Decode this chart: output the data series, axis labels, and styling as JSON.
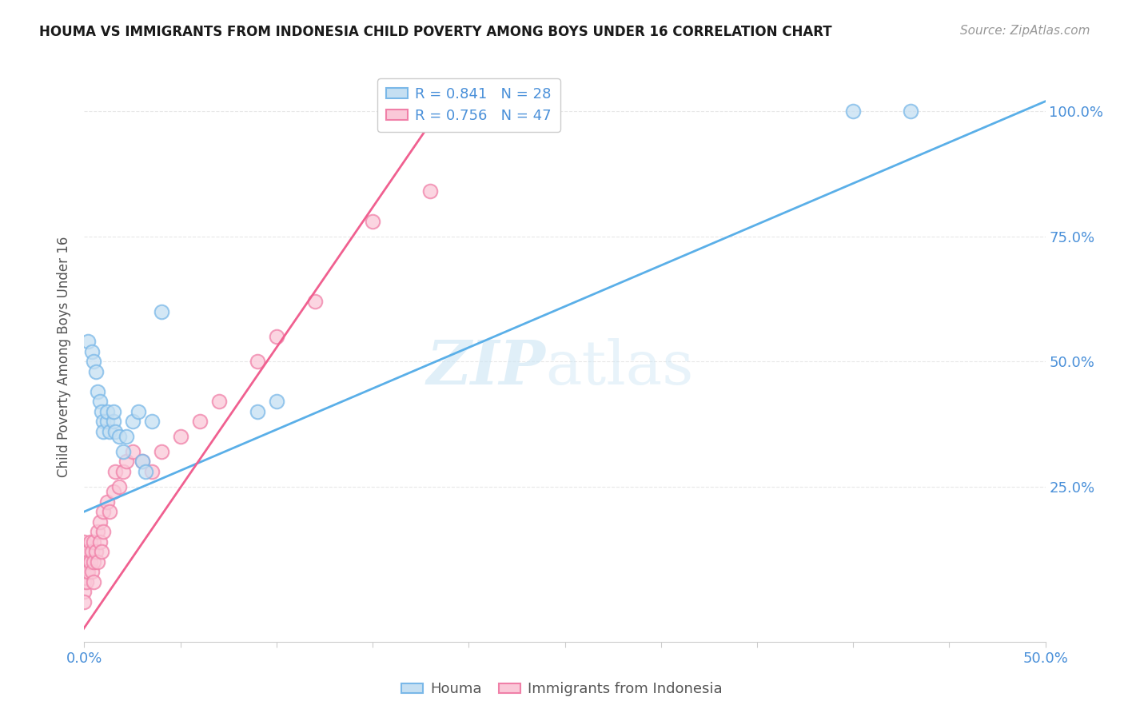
{
  "title": "HOUMA VS IMMIGRANTS FROM INDONESIA CHILD POVERTY AMONG BOYS UNDER 16 CORRELATION CHART",
  "source": "Source: ZipAtlas.com",
  "ylabel_label": "Child Poverty Among Boys Under 16",
  "xlim": [
    0.0,
    0.5
  ],
  "ylim": [
    -0.06,
    1.08
  ],
  "ytick_values": [
    0.25,
    0.5,
    0.75,
    1.0
  ],
  "ytick_labels": [
    "25.0%",
    "50.0%",
    "75.0%",
    "100.0%"
  ],
  "legend_r1": "R = 0.841   N = 28",
  "legend_r2": "R = 0.756   N = 47",
  "houma_fill_color": "#c5dff2",
  "houma_edge_color": "#7ab8e8",
  "indonesia_fill_color": "#fac8d8",
  "indonesia_edge_color": "#f080a8",
  "houma_line_color": "#5aafe8",
  "indonesia_line_color": "#f06090",
  "houma_scatter_x": [
    0.002,
    0.004,
    0.005,
    0.006,
    0.007,
    0.008,
    0.009,
    0.01,
    0.01,
    0.012,
    0.012,
    0.013,
    0.015,
    0.015,
    0.016,
    0.018,
    0.02,
    0.022,
    0.025,
    0.028,
    0.03,
    0.032,
    0.035,
    0.04,
    0.09,
    0.1,
    0.4,
    0.43
  ],
  "houma_scatter_y": [
    0.54,
    0.52,
    0.5,
    0.48,
    0.44,
    0.42,
    0.4,
    0.38,
    0.36,
    0.38,
    0.4,
    0.36,
    0.38,
    0.4,
    0.36,
    0.35,
    0.32,
    0.35,
    0.38,
    0.4,
    0.3,
    0.28,
    0.38,
    0.6,
    0.4,
    0.42,
    1.0,
    1.0
  ],
  "indonesia_scatter_x": [
    0.0,
    0.0,
    0.0,
    0.0,
    0.0,
    0.0,
    0.0,
    0.001,
    0.001,
    0.001,
    0.002,
    0.002,
    0.002,
    0.003,
    0.003,
    0.004,
    0.004,
    0.005,
    0.005,
    0.005,
    0.006,
    0.007,
    0.007,
    0.008,
    0.008,
    0.009,
    0.01,
    0.01,
    0.012,
    0.013,
    0.015,
    0.016,
    0.018,
    0.02,
    0.022,
    0.025,
    0.03,
    0.035,
    0.04,
    0.05,
    0.06,
    0.07,
    0.09,
    0.1,
    0.12,
    0.15,
    0.18
  ],
  "indonesia_scatter_y": [
    0.1,
    0.12,
    0.14,
    0.08,
    0.06,
    0.04,
    0.02,
    0.1,
    0.08,
    0.06,
    0.12,
    0.1,
    0.08,
    0.14,
    0.1,
    0.12,
    0.08,
    0.14,
    0.1,
    0.06,
    0.12,
    0.16,
    0.1,
    0.18,
    0.14,
    0.12,
    0.2,
    0.16,
    0.22,
    0.2,
    0.24,
    0.28,
    0.25,
    0.28,
    0.3,
    0.32,
    0.3,
    0.28,
    0.32,
    0.35,
    0.38,
    0.42,
    0.5,
    0.55,
    0.62,
    0.78,
    0.84
  ],
  "houma_trend_x": [
    0.0,
    0.5
  ],
  "houma_trend_y": [
    0.2,
    1.02
  ],
  "indonesia_trend_x": [
    -0.005,
    0.195
  ],
  "indonesia_trend_y": [
    -0.06,
    1.06
  ],
  "watermark_zip": "ZIP",
  "watermark_atlas": "atlas",
  "background_color": "#ffffff",
  "grid_color": "#e8e8e8",
  "axis_color": "#4a90d9",
  "title_color": "#1a1a1a",
  "source_color": "#999999"
}
